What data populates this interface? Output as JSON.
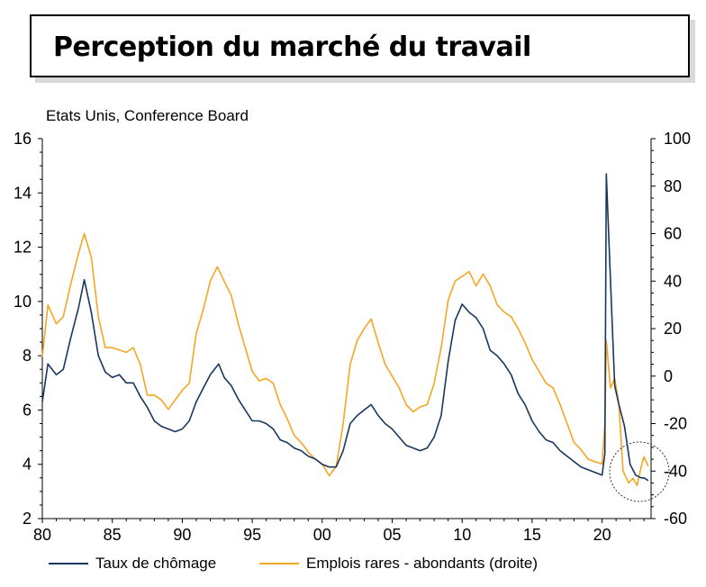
{
  "title": "Perception du marché du travail",
  "subtitle": "Etats Unis, Conference Board",
  "chart_data": {
    "type": "line",
    "title": "Perception du marché du travail",
    "subtitle": "Etats Unis, Conference Board",
    "xlim": [
      1980,
      2023.5
    ],
    "ylim_left": [
      2,
      16
    ],
    "ylim_right": [
      -60,
      100
    ],
    "x_ticks": [
      1980,
      1985,
      1990,
      1995,
      2000,
      2005,
      2010,
      2015,
      2020
    ],
    "x_tick_labels": [
      "80",
      "85",
      "90",
      "95",
      "00",
      "05",
      "10",
      "15",
      "20"
    ],
    "y_left_ticks": [
      "2",
      "4",
      "6",
      "8",
      "10",
      "12",
      "14",
      "16"
    ],
    "y_right_ticks": [
      "-60",
      "-40",
      "-20",
      "0",
      "20",
      "40",
      "60",
      "80",
      "100"
    ],
    "grid": false,
    "legend_position": "bottom",
    "series": [
      {
        "name": "Taux de chômage",
        "axis": "left",
        "color": "#17375e",
        "points": [
          [
            1980.0,
            6.3
          ],
          [
            1980.4,
            7.7
          ],
          [
            1981.0,
            7.3
          ],
          [
            1981.5,
            7.5
          ],
          [
            1982.0,
            8.6
          ],
          [
            1982.6,
            9.8
          ],
          [
            1983.0,
            10.8
          ],
          [
            1983.5,
            9.6
          ],
          [
            1984.0,
            8.0
          ],
          [
            1984.5,
            7.4
          ],
          [
            1985.0,
            7.2
          ],
          [
            1985.5,
            7.3
          ],
          [
            1986.0,
            7.0
          ],
          [
            1986.5,
            7.0
          ],
          [
            1987.0,
            6.5
          ],
          [
            1987.5,
            6.1
          ],
          [
            1988.0,
            5.6
          ],
          [
            1988.5,
            5.4
          ],
          [
            1989.0,
            5.3
          ],
          [
            1989.5,
            5.2
          ],
          [
            1990.0,
            5.3
          ],
          [
            1990.5,
            5.6
          ],
          [
            1991.0,
            6.3
          ],
          [
            1991.5,
            6.8
          ],
          [
            1992.0,
            7.3
          ],
          [
            1992.6,
            7.7
          ],
          [
            1993.0,
            7.2
          ],
          [
            1993.5,
            6.9
          ],
          [
            1994.0,
            6.4
          ],
          [
            1994.5,
            6.0
          ],
          [
            1995.0,
            5.6
          ],
          [
            1995.5,
            5.6
          ],
          [
            1996.0,
            5.5
          ],
          [
            1996.5,
            5.3
          ],
          [
            1997.0,
            4.9
          ],
          [
            1997.5,
            4.8
          ],
          [
            1998.0,
            4.6
          ],
          [
            1998.5,
            4.5
          ],
          [
            1999.0,
            4.3
          ],
          [
            1999.5,
            4.2
          ],
          [
            2000.0,
            4.0
          ],
          [
            2000.5,
            3.9
          ],
          [
            2001.0,
            3.9
          ],
          [
            2001.5,
            4.5
          ],
          [
            2002.0,
            5.5
          ],
          [
            2002.5,
            5.8
          ],
          [
            2003.0,
            6.0
          ],
          [
            2003.5,
            6.2
          ],
          [
            2004.0,
            5.8
          ],
          [
            2004.5,
            5.5
          ],
          [
            2005.0,
            5.3
          ],
          [
            2005.5,
            5.0
          ],
          [
            2006.0,
            4.7
          ],
          [
            2006.5,
            4.6
          ],
          [
            2007.0,
            4.5
          ],
          [
            2007.5,
            4.6
          ],
          [
            2008.0,
            5.0
          ],
          [
            2008.5,
            5.8
          ],
          [
            2009.0,
            7.8
          ],
          [
            2009.5,
            9.3
          ],
          [
            2010.0,
            9.9
          ],
          [
            2010.5,
            9.6
          ],
          [
            2011.0,
            9.4
          ],
          [
            2011.5,
            9.0
          ],
          [
            2012.0,
            8.2
          ],
          [
            2012.5,
            8.0
          ],
          [
            2013.0,
            7.7
          ],
          [
            2013.5,
            7.3
          ],
          [
            2014.0,
            6.6
          ],
          [
            2014.5,
            6.2
          ],
          [
            2015.0,
            5.6
          ],
          [
            2015.5,
            5.2
          ],
          [
            2016.0,
            4.9
          ],
          [
            2016.5,
            4.8
          ],
          [
            2017.0,
            4.5
          ],
          [
            2017.5,
            4.3
          ],
          [
            2018.0,
            4.1
          ],
          [
            2018.5,
            3.9
          ],
          [
            2019.0,
            3.8
          ],
          [
            2019.5,
            3.7
          ],
          [
            2020.0,
            3.6
          ],
          [
            2020.2,
            4.4
          ],
          [
            2020.3,
            14.7
          ],
          [
            2020.6,
            10.8
          ],
          [
            2020.9,
            6.9
          ],
          [
            2021.2,
            6.2
          ],
          [
            2021.6,
            5.4
          ],
          [
            2022.0,
            4.0
          ],
          [
            2022.4,
            3.6
          ],
          [
            2022.8,
            3.5
          ],
          [
            2023.0,
            3.5
          ],
          [
            2023.3,
            3.4
          ]
        ]
      },
      {
        "name": "Emplois rares - abondants (droite)",
        "axis": "right",
        "color": "#f5a623",
        "points": [
          [
            1980.0,
            8
          ],
          [
            1980.4,
            30
          ],
          [
            1981.0,
            22
          ],
          [
            1981.5,
            25
          ],
          [
            1982.0,
            38
          ],
          [
            1982.6,
            52
          ],
          [
            1983.0,
            60
          ],
          [
            1983.5,
            50
          ],
          [
            1984.0,
            25
          ],
          [
            1984.5,
            12
          ],
          [
            1985.0,
            12
          ],
          [
            1985.5,
            11
          ],
          [
            1986.0,
            10
          ],
          [
            1986.5,
            12
          ],
          [
            1987.0,
            5
          ],
          [
            1987.5,
            -8
          ],
          [
            1988.0,
            -8
          ],
          [
            1988.5,
            -10
          ],
          [
            1989.0,
            -14
          ],
          [
            1989.5,
            -10
          ],
          [
            1990.0,
            -6
          ],
          [
            1990.5,
            -3
          ],
          [
            1991.0,
            18
          ],
          [
            1991.5,
            28
          ],
          [
            1992.0,
            40
          ],
          [
            1992.5,
            46
          ],
          [
            1993.0,
            40
          ],
          [
            1993.5,
            34
          ],
          [
            1994.0,
            22
          ],
          [
            1994.5,
            12
          ],
          [
            1995.0,
            2
          ],
          [
            1995.5,
            -2
          ],
          [
            1996.0,
            -1
          ],
          [
            1996.5,
            -3
          ],
          [
            1997.0,
            -12
          ],
          [
            1997.5,
            -18
          ],
          [
            1998.0,
            -25
          ],
          [
            1998.5,
            -28
          ],
          [
            1999.0,
            -32
          ],
          [
            1999.5,
            -35
          ],
          [
            2000.0,
            -37
          ],
          [
            2000.5,
            -42
          ],
          [
            2001.0,
            -38
          ],
          [
            2001.5,
            -20
          ],
          [
            2002.0,
            5
          ],
          [
            2002.5,
            15
          ],
          [
            2003.0,
            20
          ],
          [
            2003.5,
            24
          ],
          [
            2004.0,
            14
          ],
          [
            2004.5,
            5
          ],
          [
            2005.0,
            0
          ],
          [
            2005.5,
            -5
          ],
          [
            2006.0,
            -12
          ],
          [
            2006.5,
            -15
          ],
          [
            2007.0,
            -13
          ],
          [
            2007.5,
            -12
          ],
          [
            2008.0,
            -3
          ],
          [
            2008.5,
            12
          ],
          [
            2009.0,
            32
          ],
          [
            2009.5,
            40
          ],
          [
            2010.0,
            42
          ],
          [
            2010.5,
            44
          ],
          [
            2011.0,
            38
          ],
          [
            2011.5,
            43
          ],
          [
            2012.0,
            38
          ],
          [
            2012.5,
            30
          ],
          [
            2013.0,
            27
          ],
          [
            2013.5,
            25
          ],
          [
            2014.0,
            20
          ],
          [
            2014.5,
            14
          ],
          [
            2015.0,
            7
          ],
          [
            2015.5,
            2
          ],
          [
            2016.0,
            -3
          ],
          [
            2016.5,
            -5
          ],
          [
            2017.0,
            -12
          ],
          [
            2017.5,
            -20
          ],
          [
            2018.0,
            -28
          ],
          [
            2018.5,
            -31
          ],
          [
            2019.0,
            -35
          ],
          [
            2019.5,
            -36
          ],
          [
            2020.0,
            -37
          ],
          [
            2020.2,
            -20
          ],
          [
            2020.3,
            15
          ],
          [
            2020.6,
            -5
          ],
          [
            2020.9,
            -1
          ],
          [
            2021.2,
            -12
          ],
          [
            2021.5,
            -40
          ],
          [
            2021.9,
            -45
          ],
          [
            2022.2,
            -43
          ],
          [
            2022.5,
            -46
          ],
          [
            2022.8,
            -38
          ],
          [
            2023.0,
            -34
          ],
          [
            2023.3,
            -38
          ]
        ]
      }
    ]
  }
}
